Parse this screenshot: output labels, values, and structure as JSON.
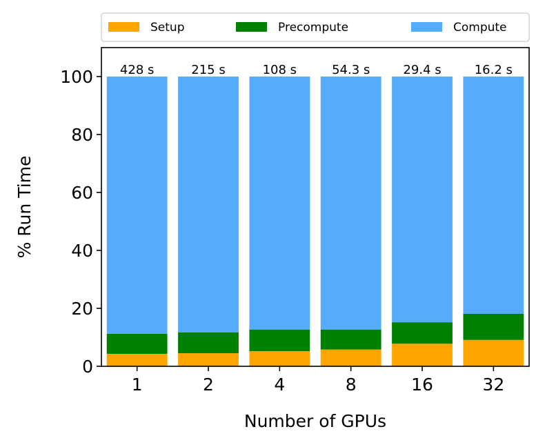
{
  "chart_data": {
    "type": "bar",
    "stacked": true,
    "categories": [
      "1",
      "2",
      "4",
      "8",
      "16",
      "32"
    ],
    "series": [
      {
        "name": "Setup",
        "color": "#FFA500",
        "values": [
          4.3,
          4.5,
          5.2,
          5.8,
          7.8,
          9.1
        ]
      },
      {
        "name": "Precompute",
        "color": "#008000",
        "values": [
          6.9,
          7.2,
          7.5,
          6.9,
          7.4,
          9.0
        ]
      },
      {
        "name": "Compute",
        "color": "#56ACFC",
        "values": [
          88.8,
          88.3,
          87.3,
          87.3,
          84.8,
          81.9
        ]
      }
    ],
    "bar_labels": [
      "428 s",
      "215 s",
      "108 s",
      "54.3 s",
      "29.4 s",
      "16.2 s"
    ],
    "xlabel": "Number of GPUs",
    "ylabel": "% Run Time",
    "ylim": [
      0,
      110
    ],
    "yticks": [
      0,
      20,
      40,
      60,
      80,
      100
    ],
    "grid": false,
    "legend_position": "top, above plot"
  }
}
